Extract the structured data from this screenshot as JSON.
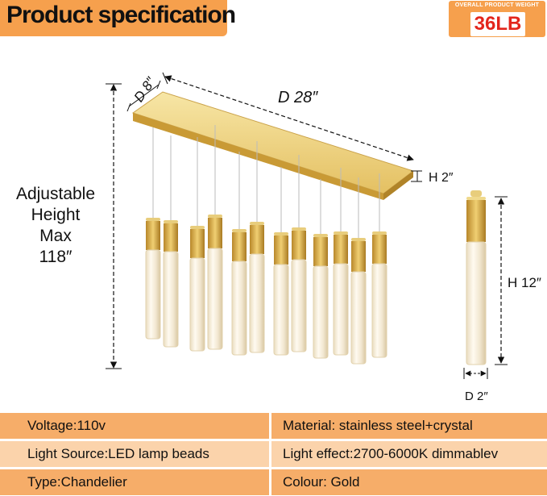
{
  "header": {
    "title": "Product specification",
    "weight_label": "OVERALL PRODUCT WEIGHT",
    "weight_value": "36LB"
  },
  "dimensions": {
    "depth": "D 8″",
    "length": "D 28″",
    "canopy_height": "H 2″",
    "adjustable_lines": [
      "Adjustable",
      "Height",
      "Max",
      "118″"
    ],
    "pendant_height": "H 12″",
    "pendant_diameter": "D 2″"
  },
  "colors": {
    "accent_orange": "#f6a04d",
    "row_dark": "#f6ad69",
    "row_light": "#fbd3ab",
    "weight_red": "#e3261c",
    "gold": "#d4a93c"
  },
  "specs": [
    {
      "left": "Voltage:110v",
      "right": "Material: stainless steel+crystal"
    },
    {
      "left": "Light Source:LED lamp beads",
      "right": "Light effect:2700-6000K dimmablev"
    },
    {
      "left": "Type:Chandelier",
      "right": "Colour: Gold"
    }
  ]
}
